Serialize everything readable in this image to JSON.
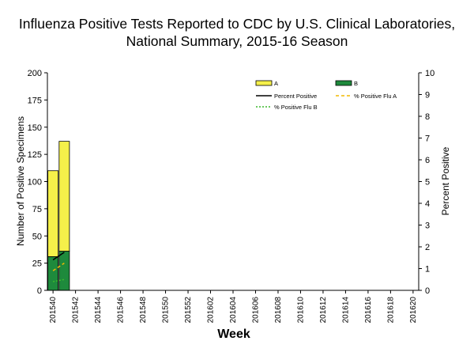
{
  "chart_data": {
    "type": "bar",
    "stacked": true,
    "title_line1": "Influenza Positive Tests Reported to CDC by U.S. Clinical Laboratories,",
    "title_line2": "National Summary, 2015-16 Season",
    "xlabel": "Week",
    "ylabel_left": "Number of Positive Specimens",
    "ylabel_right": "Percent Positive",
    "ylim_left": [
      0,
      200
    ],
    "ylim_right": [
      0,
      10
    ],
    "yticks_left": [
      "0",
      "25",
      "50",
      "75",
      "100",
      "125",
      "150",
      "175",
      "200"
    ],
    "yticks_right": [
      "0",
      "1",
      "2",
      "3",
      "4",
      "5",
      "6",
      "7",
      "8",
      "9",
      "10"
    ],
    "xtick_labels": [
      "201540",
      "201542",
      "201544",
      "201546",
      "201548",
      "201550",
      "201552",
      "201602",
      "201604",
      "201606",
      "201608",
      "201610",
      "201612",
      "201614",
      "201616",
      "201618",
      "201620"
    ],
    "weeks_total": 33,
    "categories": [
      "201540",
      "201541"
    ],
    "series": [
      {
        "name": "B",
        "kind": "bar",
        "color": "#1e8a3c",
        "values": [
          31,
          36
        ]
      },
      {
        "name": "A",
        "kind": "bar",
        "color": "#f5f04a",
        "values": [
          79,
          101
        ]
      },
      {
        "name": "Percent Positive",
        "kind": "line",
        "axis": "right",
        "color": "#000000",
        "values": [
          1.4,
          1.75
        ]
      },
      {
        "name": "% Positive Flu A",
        "kind": "line",
        "axis": "right",
        "color": "#f2b800",
        "values": [
          0.9,
          1.25
        ]
      },
      {
        "name": "% Positive Flu B",
        "kind": "line",
        "axis": "right",
        "color": "#3cb82c",
        "values": [
          0.4,
          0.5
        ]
      }
    ],
    "legend": {
      "a": "A",
      "b": "B",
      "percent_positive": "Percent Positive",
      "pct_flu_a": "% Positive Flu A",
      "pct_flu_b": "% Positive Flu B"
    }
  }
}
